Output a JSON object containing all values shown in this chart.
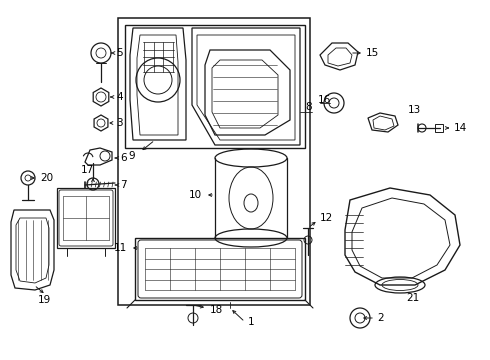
{
  "background_color": "#ffffff",
  "line_color": "#1a1a1a",
  "text_color": "#000000",
  "figsize": [
    4.9,
    3.6
  ],
  "dpi": 100,
  "font_size": 7.5,
  "lw": 0.9
}
